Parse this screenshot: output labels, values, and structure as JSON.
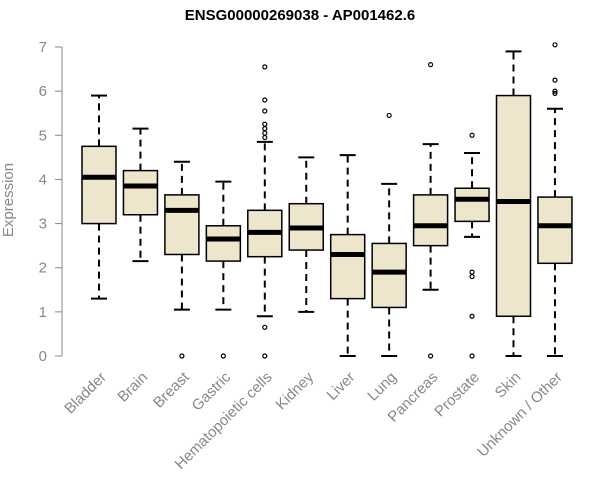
{
  "chart_data": {
    "type": "box",
    "title": "ENSG00000269038 - AP001462.6",
    "xlabel": "",
    "ylabel": "Expression",
    "ylim": [
      0,
      7
    ],
    "yticks": [
      0,
      1,
      2,
      3,
      4,
      5,
      6,
      7
    ],
    "grid": false,
    "colors": {
      "box_fill": "#ede5cc",
      "box_stroke": "#000000",
      "axis_text": "#888888"
    },
    "categories": [
      "Bladder",
      "Brain",
      "Breast",
      "Gastric",
      "Hematopoietic cells",
      "Kidney",
      "Liver",
      "Lung",
      "Pancreas",
      "Prostate",
      "Skin",
      "Unknown / Other"
    ],
    "boxes": [
      {
        "category": "Bladder",
        "whisker_low": 1.3,
        "q1": 3.0,
        "median": 4.05,
        "q3": 4.75,
        "whisker_high": 5.9,
        "outliers": []
      },
      {
        "category": "Brain",
        "whisker_low": 2.15,
        "q1": 3.2,
        "median": 3.85,
        "q3": 4.2,
        "whisker_high": 5.15,
        "outliers": []
      },
      {
        "category": "Breast",
        "whisker_low": 1.05,
        "q1": 2.3,
        "median": 3.3,
        "q3": 3.65,
        "whisker_high": 4.4,
        "outliers": [
          0.0
        ]
      },
      {
        "category": "Gastric",
        "whisker_low": 1.05,
        "q1": 2.15,
        "median": 2.65,
        "q3": 2.95,
        "whisker_high": 3.95,
        "outliers": [
          0.0
        ]
      },
      {
        "category": "Hematopoietic cells",
        "whisker_low": 0.9,
        "q1": 2.25,
        "median": 2.8,
        "q3": 3.3,
        "whisker_high": 4.85,
        "outliers": [
          0.0,
          0.65,
          4.95,
          5.05,
          5.15,
          5.25,
          5.55,
          5.8,
          6.55
        ]
      },
      {
        "category": "Kidney",
        "whisker_low": 1.0,
        "q1": 2.4,
        "median": 2.9,
        "q3": 3.45,
        "whisker_high": 4.5,
        "outliers": []
      },
      {
        "category": "Liver",
        "whisker_low": 0.0,
        "q1": 1.3,
        "median": 2.3,
        "q3": 2.75,
        "whisker_high": 4.55,
        "outliers": []
      },
      {
        "category": "Lung",
        "whisker_low": 0.0,
        "q1": 1.1,
        "median": 1.9,
        "q3": 2.55,
        "whisker_high": 3.9,
        "outliers": [
          5.45
        ]
      },
      {
        "category": "Pancreas",
        "whisker_low": 1.5,
        "q1": 2.5,
        "median": 2.95,
        "q3": 3.65,
        "whisker_high": 4.8,
        "outliers": [
          0.0,
          6.6
        ]
      },
      {
        "category": "Prostate",
        "whisker_low": 2.7,
        "q1": 3.05,
        "median": 3.55,
        "q3": 3.8,
        "whisker_high": 4.6,
        "outliers": [
          0.0,
          0.9,
          1.8,
          1.9,
          5.0
        ]
      },
      {
        "category": "Skin",
        "whisker_low": 0.0,
        "q1": 0.9,
        "median": 3.5,
        "q3": 5.9,
        "whisker_high": 6.9,
        "outliers": []
      },
      {
        "category": "Unknown / Other",
        "whisker_low": 0.0,
        "q1": 2.1,
        "median": 2.95,
        "q3": 3.6,
        "whisker_high": 5.6,
        "outliers": [
          5.95,
          6.0,
          6.25,
          7.05
        ]
      }
    ]
  }
}
